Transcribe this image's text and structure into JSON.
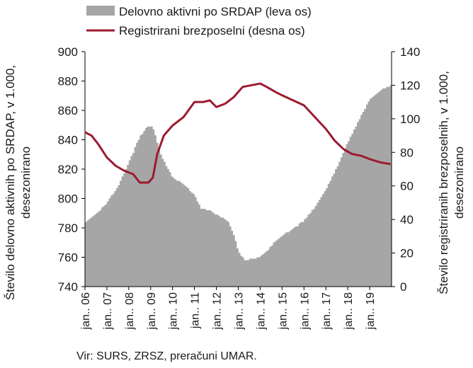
{
  "chart_data": {
    "type": "area",
    "secondary_type": "line",
    "legend": {
      "position": "top-left",
      "entries": [
        {
          "label": "Delovno aktivni po SRDAP (leva os)",
          "series": "area"
        },
        {
          "label": "Registrirani brezposelni (desna os)",
          "series": "line"
        }
      ]
    },
    "y_left": {
      "label": "Število delovno aktivnih po SRDAP, v 1.000, desezonirano",
      "label_lines": [
        "Število delovno aktivnih po SRDAP, v 1.000,",
        "desezonirano"
      ],
      "min": 740,
      "max": 900,
      "step": 20,
      "ticks": [
        "740",
        "760",
        "780",
        "800",
        "820",
        "840",
        "860",
        "880",
        "900"
      ]
    },
    "y_right": {
      "label": "Število registriranih brezposelnih, v 1.000, desezonirano",
      "label_lines": [
        "Število registriranih brezposelnih, v 1.000,",
        "desezonirano"
      ],
      "min": 0,
      "max": 140,
      "step": 20,
      "ticks": [
        "0",
        "20",
        "40",
        "60",
        "80",
        "100",
        "120",
        "140"
      ]
    },
    "x_ticks": [
      "jan.. 06",
      "jan.. 07",
      "jan.. 08",
      "jan.. 09",
      "jan.. 10",
      "jan.. 11",
      "jan.. 12",
      "jan.. 13",
      "jan.. 14",
      "jan.. 15",
      "jan.. 16",
      "jan.. 17",
      "jan.. 18",
      "jan.. 19"
    ],
    "x_start_year": 2006,
    "series": [
      {
        "name": "Delovno aktivni po SRDAP (leva os)",
        "axis": "left",
        "color": "#a6a6a6",
        "points": [
          [
            2006.0,
            784
          ],
          [
            2006.5,
            789
          ],
          [
            2007.0,
            797
          ],
          [
            2007.5,
            808
          ],
          [
            2008.0,
            824
          ],
          [
            2008.5,
            842
          ],
          [
            2008.9,
            850
          ],
          [
            2009.1,
            848
          ],
          [
            2009.3,
            838
          ],
          [
            2009.5,
            828
          ],
          [
            2010.0,
            814
          ],
          [
            2010.5,
            810
          ],
          [
            2011.0,
            802
          ],
          [
            2011.3,
            793
          ],
          [
            2011.7,
            792
          ],
          [
            2012.0,
            789
          ],
          [
            2012.5,
            785
          ],
          [
            2012.8,
            775
          ],
          [
            2013.0,
            764
          ],
          [
            2013.3,
            758
          ],
          [
            2013.7,
            759
          ],
          [
            2014.0,
            760
          ],
          [
            2014.3,
            764
          ],
          [
            2014.7,
            771
          ],
          [
            2015.0,
            775
          ],
          [
            2015.5,
            779
          ],
          [
            2016.0,
            785
          ],
          [
            2016.5,
            794
          ],
          [
            2017.0,
            806
          ],
          [
            2017.5,
            821
          ],
          [
            2018.0,
            838
          ],
          [
            2018.5,
            853
          ],
          [
            2019.0,
            867
          ],
          [
            2019.5,
            874
          ],
          [
            2019.95,
            877
          ]
        ]
      },
      {
        "name": "Registrirani brezposelni (desna os)",
        "axis": "right",
        "color": "#9b1b30",
        "points": [
          [
            2006.0,
            92
          ],
          [
            2006.3,
            90
          ],
          [
            2006.6,
            85
          ],
          [
            2007.0,
            77
          ],
          [
            2007.4,
            72
          ],
          [
            2007.8,
            69
          ],
          [
            2008.2,
            67
          ],
          [
            2008.5,
            62
          ],
          [
            2008.9,
            62
          ],
          [
            2009.1,
            65
          ],
          [
            2009.3,
            79
          ],
          [
            2009.6,
            90
          ],
          [
            2010.0,
            96
          ],
          [
            2010.5,
            101
          ],
          [
            2011.0,
            110
          ],
          [
            2011.4,
            110
          ],
          [
            2011.7,
            111
          ],
          [
            2012.0,
            107
          ],
          [
            2012.4,
            109
          ],
          [
            2012.8,
            113
          ],
          [
            2013.2,
            119
          ],
          [
            2013.6,
            120
          ],
          [
            2014.0,
            121
          ],
          [
            2014.3,
            119
          ],
          [
            2014.7,
            116
          ],
          [
            2015.0,
            114
          ],
          [
            2015.5,
            111
          ],
          [
            2016.0,
            108
          ],
          [
            2016.5,
            101
          ],
          [
            2017.0,
            94
          ],
          [
            2017.4,
            87
          ],
          [
            2017.8,
            82
          ],
          [
            2018.2,
            79
          ],
          [
            2018.6,
            78
          ],
          [
            2019.0,
            76
          ],
          [
            2019.5,
            74
          ],
          [
            2019.95,
            73
          ]
        ]
      }
    ]
  },
  "source_note": "Vir: SURS, ZRSZ, preračuni UMAR."
}
